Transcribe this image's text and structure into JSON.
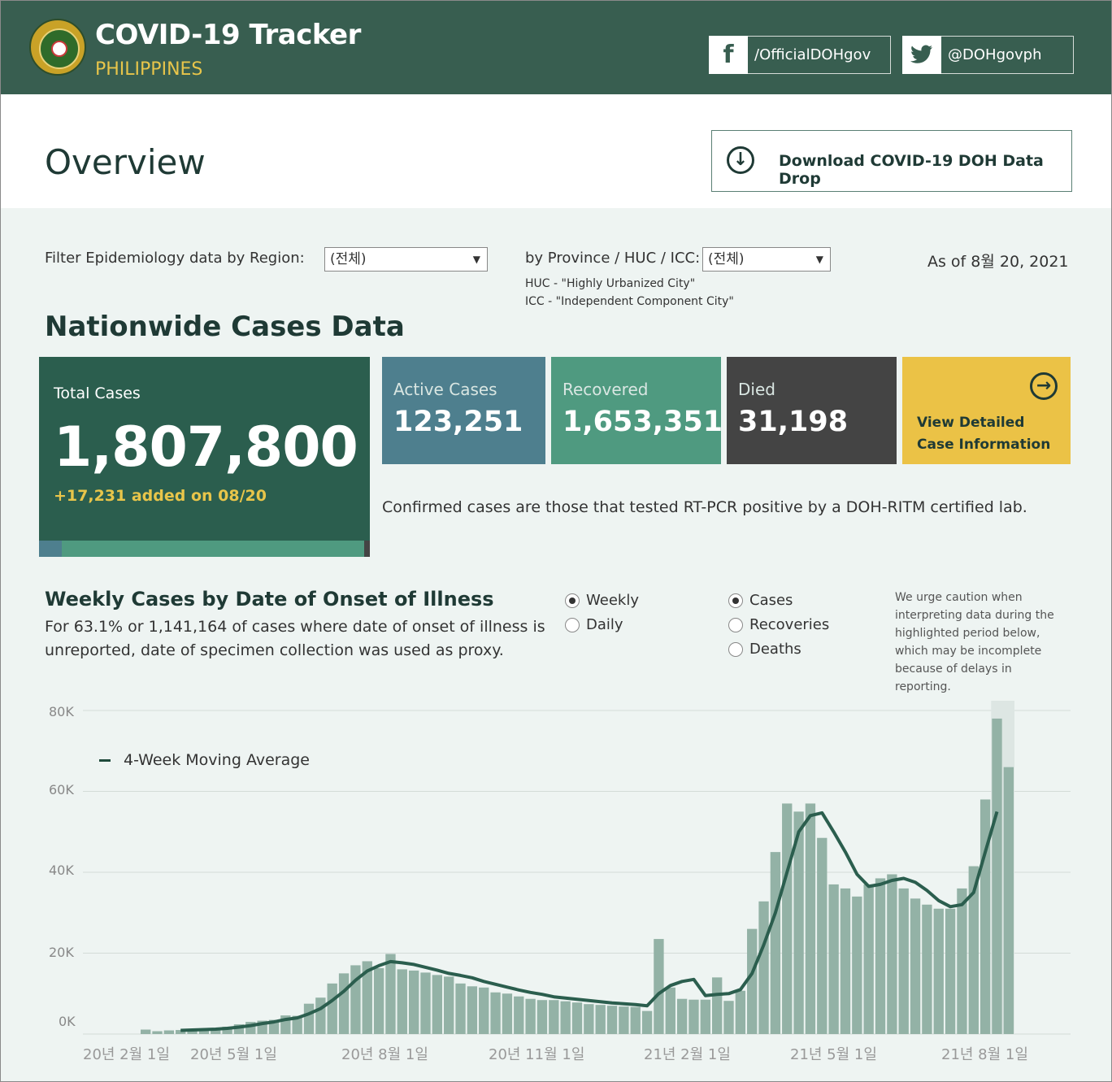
{
  "header": {
    "title": "COVID-19 Tracker",
    "subtitle": "PHILIPPINES",
    "facebook": "/OfficialDOHgov",
    "twitter": "@DOHgovph"
  },
  "overview": {
    "title": "Overview",
    "download_label": "Download COVID-19 DOH Data Drop"
  },
  "filters": {
    "region_label": "Filter Epidemiology data by Region:",
    "region_value": "(전체)",
    "province_label": "by Province / HUC / ICC:",
    "province_value": "(전체)",
    "huc_note": "HUC - \"Highly Urbanized City\"",
    "icc_note": "ICC - \"Independent Component City\"",
    "as_of": "As of 8월 20, 2021"
  },
  "nationwide": {
    "title": "Nationwide Cases Data",
    "total_label": "Total Cases",
    "total_value": "1,807,800",
    "total_added": "+17,231 added on 08/20",
    "active_label": "Active Cases",
    "active_value": "123,251",
    "recovered_label": "Recovered",
    "recovered_value": "1,653,351",
    "died_label": "Died",
    "died_value": "31,198",
    "view_detailed": "View Detailed Case Information",
    "confirmed_note": "Confirmed cases are those that tested RT-PCR positive by a DOH-RITM certified lab.",
    "composition": [
      {
        "name": "active",
        "fraction": 0.0682,
        "color": "#4e7f8e"
      },
      {
        "name": "recovered",
        "fraction": 0.9145,
        "color": "#4f9a80"
      },
      {
        "name": "died",
        "fraction": 0.0173,
        "color": "#444444"
      }
    ]
  },
  "weekly": {
    "title": "Weekly Cases by Date of Onset of Illness",
    "description": "For 63.1% or 1,141,164 of cases where date of onset of illness is unreported, date of specimen collection was used as proxy.",
    "freq_options": [
      {
        "label": "Weekly",
        "selected": true
      },
      {
        "label": "Daily",
        "selected": false
      }
    ],
    "metric_options": [
      {
        "label": "Cases",
        "selected": true
      },
      {
        "label": "Recoveries",
        "selected": false
      },
      {
        "label": "Deaths",
        "selected": false
      }
    ],
    "caution": "We urge caution when interpreting data during the highlighted period below, which may be incomplete because of delays in reporting."
  },
  "chart_data": {
    "type": "bar",
    "legend": "4-Week Moving Average",
    "y_ticks": [
      "80K",
      "60K",
      "40K",
      "20K",
      "0K"
    ],
    "ylim": [
      0,
      80000
    ],
    "x_ticks": [
      "20년 2월 1일",
      "20년 5월 1일",
      "20년 8월 1일",
      "20년 11월 1일",
      "21년 2월 1일",
      "21년 5월 1일",
      "21년 8월 1일"
    ],
    "bar_color": "#93b2a6",
    "line_color": "#2b5e4e",
    "values": [
      1100,
      700,
      900,
      1000,
      1300,
      1200,
      1400,
      1800,
      2400,
      3000,
      3300,
      3500,
      4600,
      4500,
      7500,
      9000,
      12500,
      15000,
      17000,
      18000,
      16300,
      19800,
      16000,
      15700,
      15200,
      14600,
      14200,
      12500,
      11800,
      11500,
      10300,
      10000,
      9300,
      8700,
      8400,
      8400,
      8100,
      7800,
      7400,
      7200,
      7000,
      6800,
      6700,
      5700,
      23500,
      11500,
      8700,
      8500,
      8500,
      14000,
      8200,
      10700,
      26000,
      32800,
      45000,
      57000,
      55000,
      57000,
      48500,
      37000,
      36000,
      34000,
      37000,
      38500,
      39500,
      36000,
      33500,
      32000,
      31000,
      31000,
      36000,
      41500,
      58000,
      78000,
      66000
    ],
    "moving_average": [
      null,
      null,
      null,
      900,
      1000,
      1100,
      1200,
      1400,
      1700,
      2100,
      2600,
      3000,
      3600,
      4000,
      5000,
      6300,
      8300,
      10600,
      13300,
      15600,
      16900,
      17900,
      17600,
      17200,
      16500,
      15800,
      15000,
      14500,
      13900,
      13000,
      12300,
      11600,
      10900,
      10300,
      9800,
      9200,
      8900,
      8600,
      8300,
      8000,
      7700,
      7500,
      7300,
      7000,
      10000,
      12000,
      13000,
      13500,
      9500,
      9800,
      10000,
      11000,
      15000,
      22000,
      30000,
      40000,
      50000,
      54000,
      54700,
      50000,
      45000,
      39500,
      36500,
      37000,
      38000,
      38500,
      37500,
      35500,
      33000,
      31500,
      32000,
      35000,
      45000,
      55000,
      null
    ],
    "incomplete_from_index": 73
  }
}
